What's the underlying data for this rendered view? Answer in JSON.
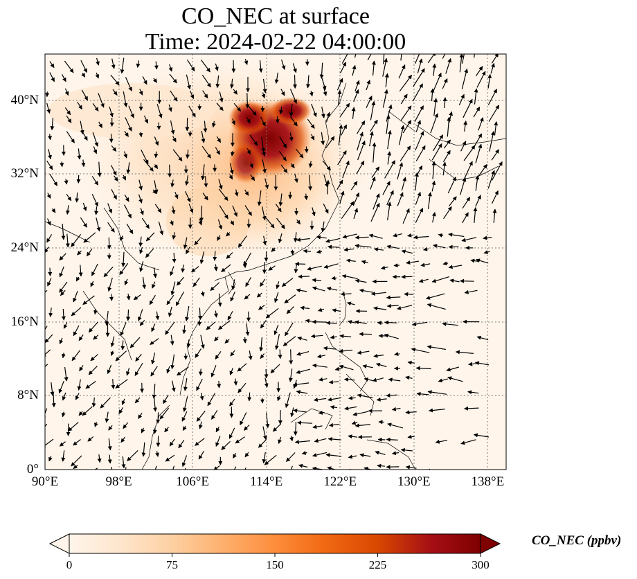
{
  "title": {
    "line1": "CO_NEC at surface",
    "line2": "Time: 2024-02-22 04:00:00"
  },
  "map": {
    "lat_labels": [
      "0°",
      "8°N",
      "16°N",
      "24°N",
      "32°N",
      "40°N"
    ],
    "lat_values": [
      0,
      8,
      16,
      24,
      32,
      40
    ],
    "lon_labels": [
      "90°E",
      "98°E",
      "106°E",
      "114°E",
      "122°E",
      "130°E",
      "138°E"
    ],
    "lon_values": [
      90,
      98,
      106,
      114,
      122,
      130,
      138
    ],
    "lon_range": [
      90,
      140
    ],
    "lat_range": [
      0,
      45
    ],
    "gridlines": true,
    "vectors": "wind-arrow-field"
  },
  "colorbar": {
    "label": "CO_NEC (ppbv)",
    "tick_labels": [
      "0",
      "75",
      "150",
      "225",
      "300"
    ],
    "tick_values": [
      0,
      75,
      150,
      225,
      300
    ],
    "range": [
      0,
      300
    ],
    "extend": "both",
    "colormap": [
      "#fff5eb",
      "#fee6ce",
      "#fdd0a2",
      "#fdae6b",
      "#fd8d3c",
      "#f16913",
      "#d94801",
      "#a50f15",
      "#7f0000"
    ]
  }
}
